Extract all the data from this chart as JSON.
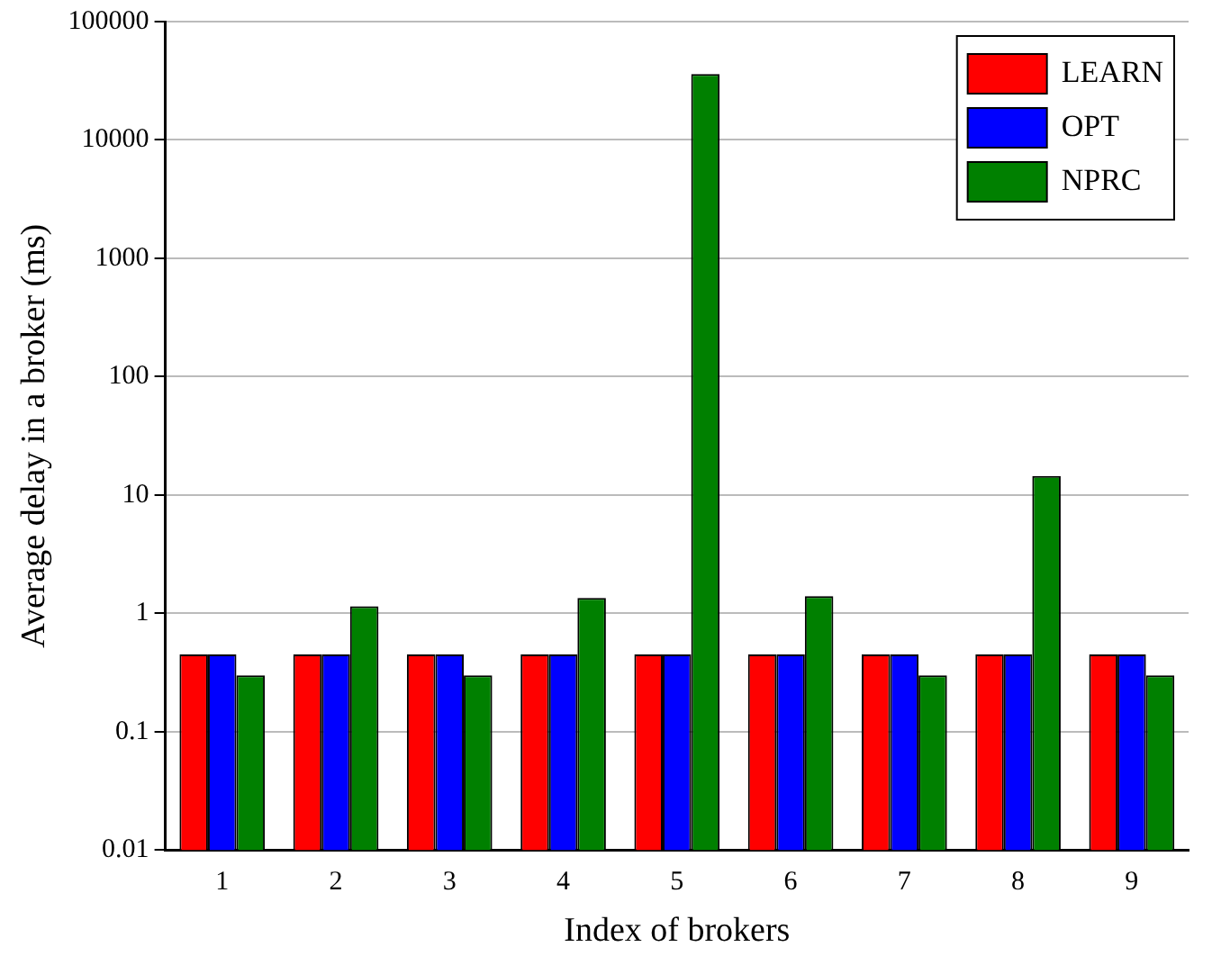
{
  "chart_data": {
    "type": "bar",
    "xlabel": "Index of brokers",
    "ylabel": "Average delay in a broker (ms)",
    "categories": [
      "1",
      "2",
      "3",
      "4",
      "5",
      "6",
      "7",
      "8",
      "9"
    ],
    "series": [
      {
        "name": "LEARN",
        "color": "#ff0000",
        "values": [
          0.45,
          0.45,
          0.45,
          0.45,
          0.45,
          0.45,
          0.45,
          0.45,
          0.45
        ]
      },
      {
        "name": "OPT",
        "color": "#0000ff",
        "values": [
          0.45,
          0.45,
          0.45,
          0.45,
          0.45,
          0.45,
          0.45,
          0.45,
          0.45
        ]
      },
      {
        "name": "NPRC",
        "color": "#008000",
        "values": [
          0.3,
          1.15,
          0.3,
          1.35,
          36000,
          1.4,
          0.3,
          14.5,
          0.3
        ]
      }
    ],
    "log": "y",
    "ylim": [
      0.01,
      100000
    ],
    "yticks": [
      0.01,
      0.1,
      1,
      10,
      100,
      1000,
      10000,
      100000
    ],
    "grid": "y",
    "legend": "top right"
  }
}
